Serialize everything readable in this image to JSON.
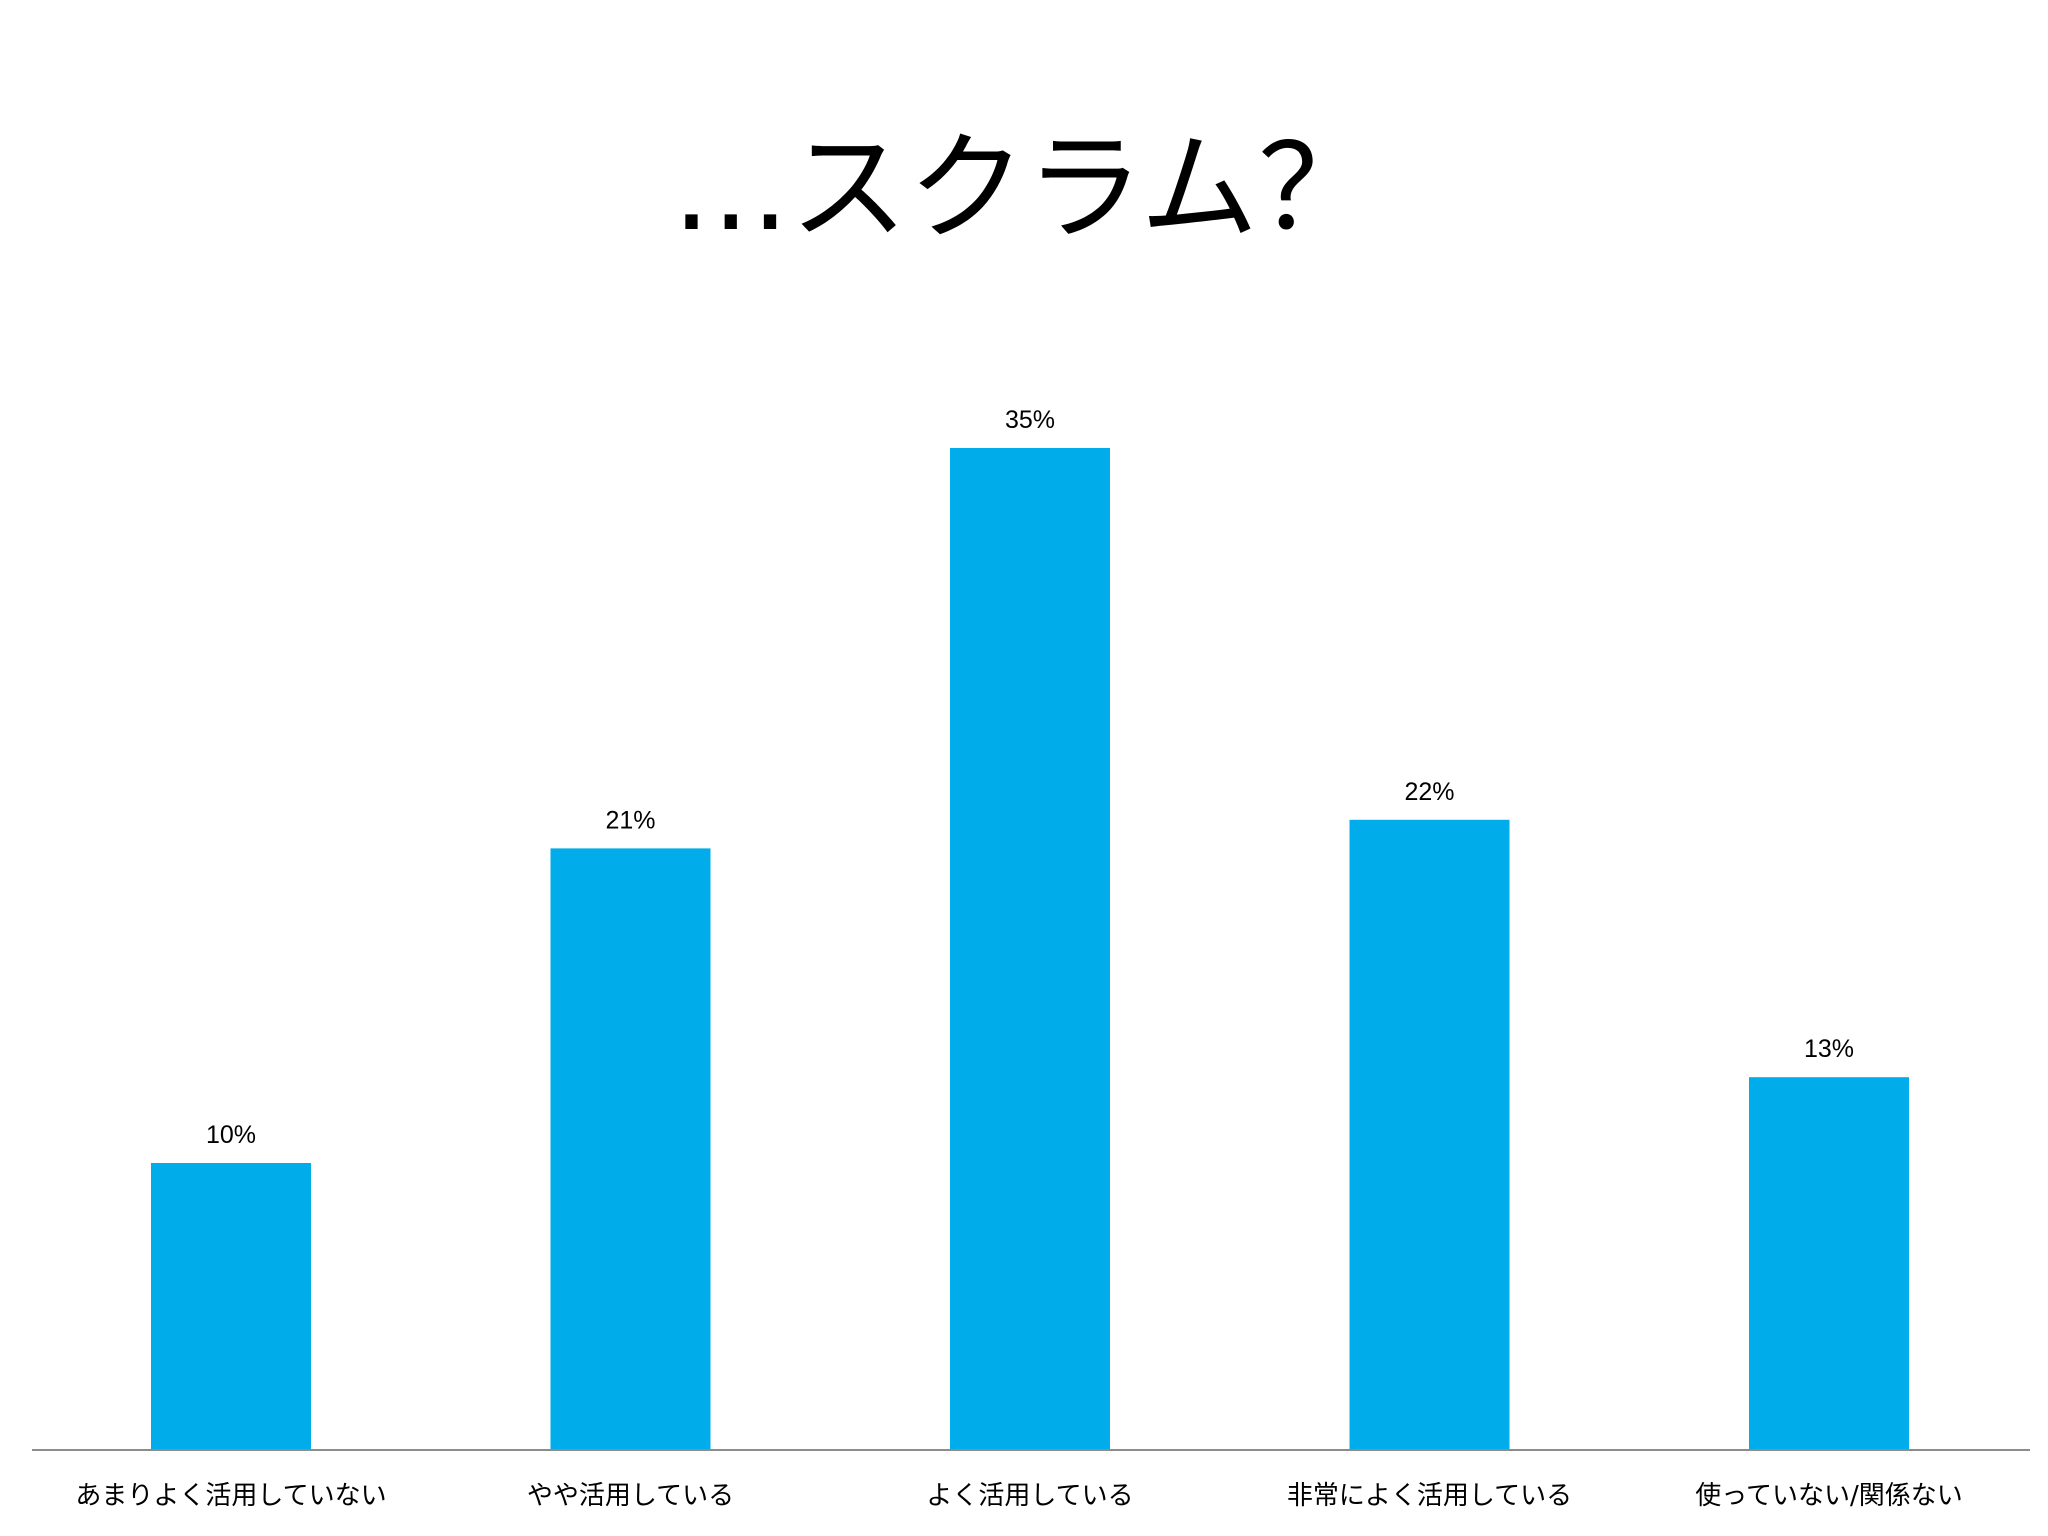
{
  "title": "…スクラム？",
  "chart_data": {
    "type": "bar",
    "title": "…スクラム？",
    "categories": [
      "あまりよく活用していない",
      "やや活用している",
      "よく活用している",
      "非常によく活用している",
      "使っていない/関係ない"
    ],
    "values": [
      10,
      21,
      35,
      22,
      13
    ],
    "data_labels": [
      "10%",
      "21%",
      "35%",
      "22%",
      "13%"
    ],
    "unit": "%",
    "ylim": [
      0,
      35
    ],
    "grid": false,
    "legend": "none",
    "bar_color": "#00ACEA",
    "axis_color": "#8C8C8C"
  }
}
